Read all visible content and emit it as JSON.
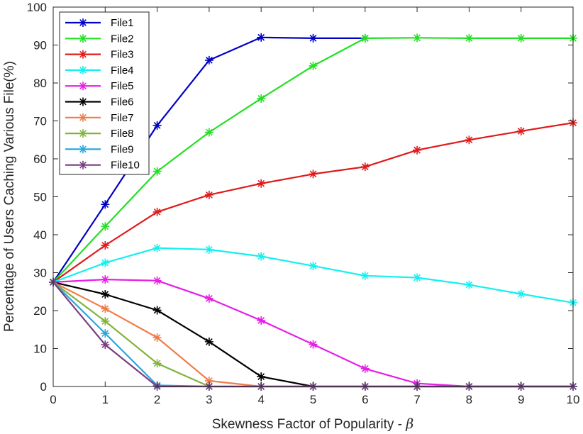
{
  "chart_data": {
    "type": "line",
    "title": "",
    "xlabel": "Skewness Factor of Popularity - ",
    "xlabel_symbol": "β",
    "ylabel": "Percentage of Users Caching Various File(%)",
    "xlim": [
      0,
      10
    ],
    "ylim": [
      0,
      100
    ],
    "xticks": [
      "0",
      "1",
      "2",
      "3",
      "4",
      "5",
      "6",
      "7",
      "8",
      "9",
      "10"
    ],
    "yticks": [
      "0",
      "10",
      "20",
      "30",
      "40",
      "50",
      "60",
      "70",
      "80",
      "90",
      "100"
    ],
    "grid": false,
    "legend_position": "top-left",
    "marker": "asterisk",
    "x": [
      0,
      1,
      2,
      3,
      4,
      5,
      6,
      7,
      8,
      9,
      10
    ],
    "series": [
      {
        "name": "File1",
        "color": "#0000c8",
        "values": [
          27.5,
          48,
          68.8,
          86,
          92,
          91.8,
          91.8,
          null,
          null,
          null,
          null
        ]
      },
      {
        "name": "File2",
        "color": "#22e022",
        "values": [
          27.5,
          42.2,
          56.7,
          67,
          75.9,
          84.5,
          91.8,
          91.9,
          91.8,
          91.8,
          91.8
        ]
      },
      {
        "name": "File3",
        "color": "#e01a1a",
        "values": [
          27.5,
          37.2,
          46,
          50.5,
          53.5,
          56,
          57.9,
          62.3,
          65,
          67.3,
          69.5
        ]
      },
      {
        "name": "File4",
        "color": "#14f0f0",
        "values": [
          27.5,
          32.6,
          36.5,
          36.1,
          34.3,
          31.8,
          29.2,
          28.7,
          26.8,
          24.4,
          22.1
        ]
      },
      {
        "name": "File5",
        "color": "#e61ee6",
        "values": [
          27.5,
          28.2,
          27.9,
          23.2,
          17.4,
          11.1,
          4.7,
          0.8,
          0,
          0,
          0
        ]
      },
      {
        "name": "File6",
        "color": "#000000",
        "values": [
          27.5,
          24.3,
          20.1,
          11.8,
          2.6,
          0,
          0,
          0,
          0,
          0,
          0
        ]
      },
      {
        "name": "File7",
        "color": "#f07d4b",
        "values": [
          27.5,
          20.5,
          12.9,
          1.5,
          0,
          0,
          0,
          0,
          0,
          0,
          0
        ]
      },
      {
        "name": "File8",
        "color": "#82b43c",
        "values": [
          27.5,
          17.2,
          6.1,
          0,
          0,
          0,
          0,
          0,
          0,
          0,
          0
        ]
      },
      {
        "name": "File9",
        "color": "#2aa6dc",
        "values": [
          27.5,
          14,
          0.3,
          0,
          0,
          0,
          0,
          0,
          0,
          0,
          0
        ]
      },
      {
        "name": "File10",
        "color": "#783c82",
        "values": [
          27.5,
          11,
          0,
          0,
          0,
          0,
          0,
          0,
          0,
          0,
          0
        ]
      }
    ]
  }
}
